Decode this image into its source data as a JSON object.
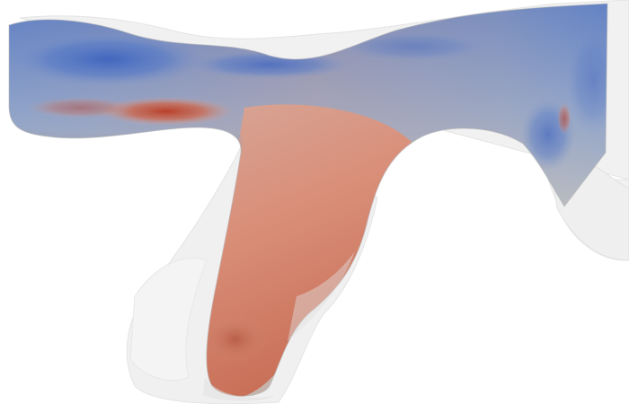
{
  "scene": {
    "background_color": "#ffffff",
    "shell_color": "#d9d9d9",
    "colormap": {
      "low": "#4a6fc0",
      "mid": "#c8c8c8",
      "high": "#c0503a"
    },
    "visible_text": []
  }
}
